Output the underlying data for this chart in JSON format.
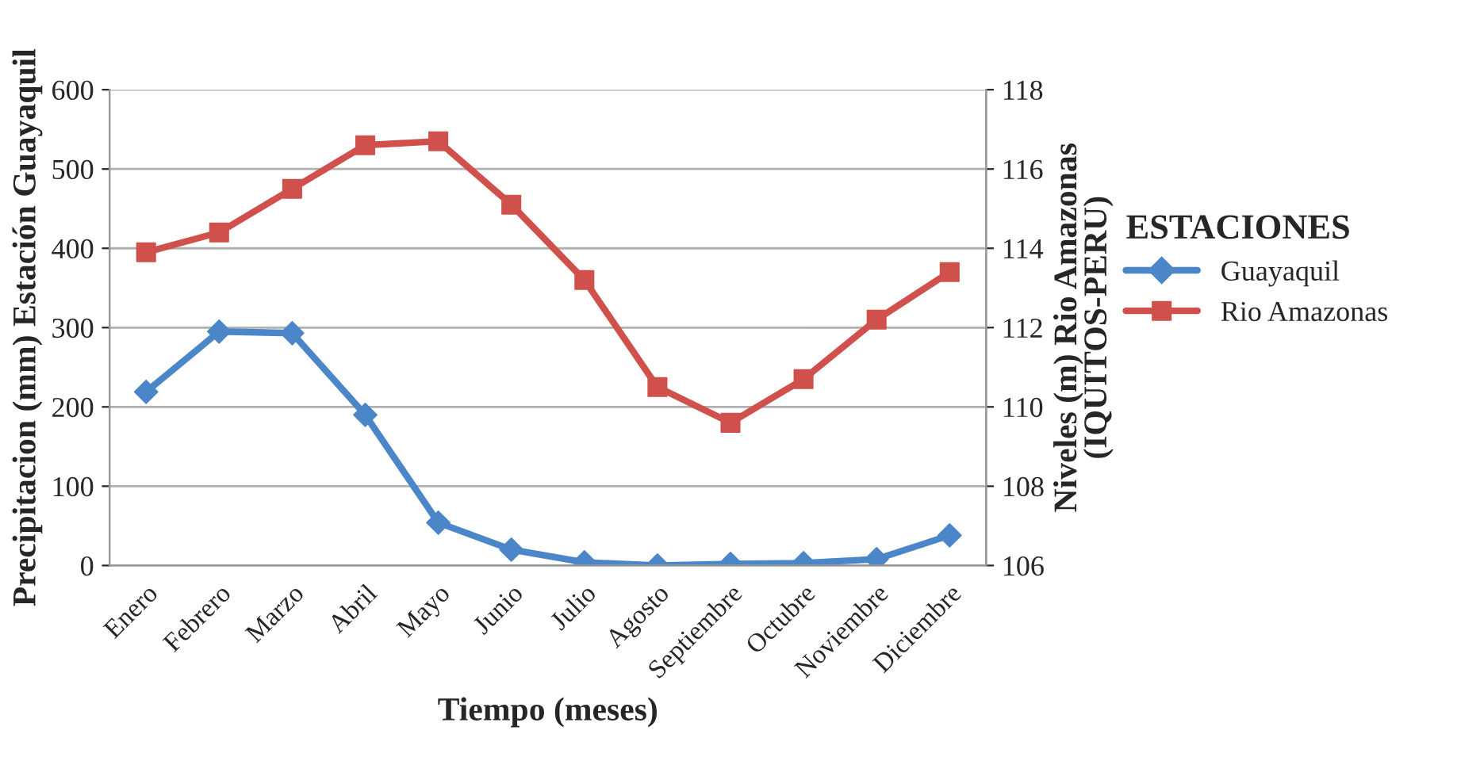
{
  "chart_data": {
    "type": "line",
    "xlabel": "Tiempo (meses)",
    "ylabel": "Precipitacion (mm) Estación Guayaquil",
    "y2label": "Niveles (m) Rio Amazonas\n(IQUITOS-PERU)",
    "legend_title": "ESTACIONES",
    "categories": [
      "Enero",
      "Febrero",
      "Marzo",
      "Abril",
      "Mayo",
      "Junio",
      "Julio",
      "Agosto",
      "Septiembre",
      "Octubre",
      "Noviembre",
      "Diciembre"
    ],
    "series": [
      {
        "name": "Guayaquil",
        "color": "#4a86c8",
        "marker": "diamond",
        "values": [
          219,
          295,
          293,
          190,
          54,
          20,
          4,
          0,
          2,
          3,
          8,
          38
        ]
      },
      {
        "name": "Rio Amazonas",
        "color": "#d0504c",
        "marker": "square",
        "axis": "y2",
        "values": [
          113.9,
          114.4,
          115.5,
          116.6,
          116.7,
          115.1,
          113.2,
          110.5,
          109.6,
          110.7,
          112.2,
          113.4
        ]
      }
    ],
    "ylim": [
      0,
      600
    ],
    "yticks": [
      0,
      100,
      200,
      300,
      400,
      500,
      600
    ],
    "y2lim": [
      106,
      118
    ],
    "y2ticks": [
      106,
      108,
      110,
      112,
      114,
      116,
      118
    ],
    "grid": "y",
    "legend": "right",
    "line_style": "solid"
  }
}
